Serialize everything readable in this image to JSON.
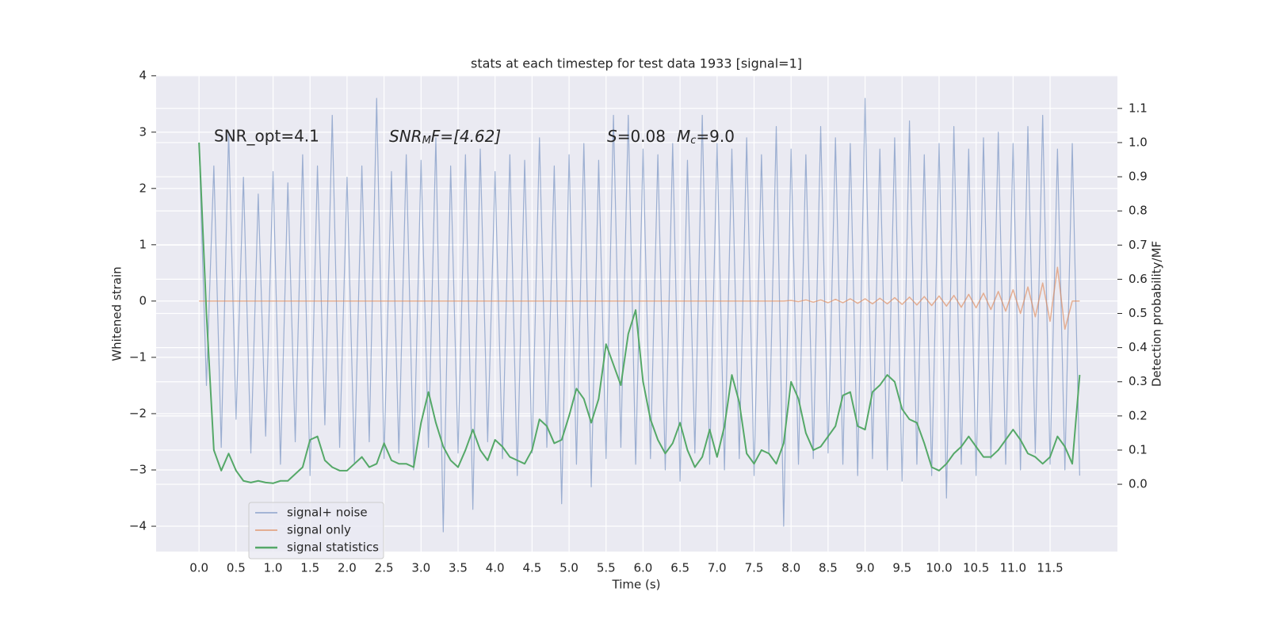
{
  "chart_data": {
    "type": "line",
    "title": "stats at each timestep for test data 1933 [signal=1]",
    "xlabel": "Time (s)",
    "ylabel": "Whitened strain",
    "y2label": "Detection probability/MF",
    "annotations": [
      [
        "SNR_opt=4.1"
      ],
      [
        "SNR",
        "M",
        "F=[4.62]"
      ],
      [
        "S",
        "=0.08",
        "M",
        "c",
        "=9.0"
      ]
    ],
    "grid": true,
    "xlim": [
      -0.58,
      12.41
    ],
    "ylim": [
      -4.45,
      4.01
    ],
    "y2lim": [
      -0.197,
      1.197
    ],
    "xticks": [
      {
        "value": 0,
        "label": "0.0"
      },
      0.5,
      {
        "value": 1,
        "label": "1.0"
      },
      1.5,
      {
        "value": 2,
        "label": "2.0"
      },
      2.5,
      {
        "value": 3,
        "label": "3.0"
      },
      3.5,
      {
        "value": 4,
        "label": "4.0"
      },
      4.5,
      {
        "value": 5,
        "label": "5.0"
      },
      5.5,
      {
        "value": 6,
        "label": "6.0"
      },
      6.5,
      {
        "value": 7,
        "label": "7.0"
      },
      7.5,
      {
        "value": 8,
        "label": "8.0"
      },
      8.5,
      {
        "value": 9,
        "label": "9.0"
      },
      9.5,
      {
        "value": 10,
        "label": "10.0"
      },
      10.5,
      {
        "value": 11,
        "label": "11.0"
      },
      11.5
    ],
    "yticks": [
      {
        "value": -4,
        "label": "−4"
      },
      {
        "value": -3,
        "label": "−3"
      },
      {
        "value": -2,
        "label": "−2"
      },
      {
        "value": -1,
        "label": "−1"
      },
      0,
      1,
      2,
      3,
      4
    ],
    "y2ticks": [
      {
        "value": 0,
        "label": "0.0"
      },
      0.1,
      0.2,
      0.3,
      0.4,
      0.5,
      0.6,
      0.7,
      0.8,
      0.9,
      {
        "value": 1,
        "label": "1.0"
      },
      1.1
    ],
    "x": [
      0.0,
      0.1,
      0.2,
      0.3,
      0.4,
      0.5,
      0.6,
      0.7,
      0.8,
      0.9,
      1.0,
      1.1,
      1.2,
      1.3,
      1.4,
      1.5,
      1.6,
      1.7,
      1.8,
      1.9,
      2.0,
      2.1,
      2.2,
      2.3,
      2.4,
      2.5,
      2.6,
      2.7,
      2.8,
      2.9,
      3.0,
      3.1,
      3.2,
      3.3,
      3.4,
      3.5,
      3.6,
      3.7,
      3.8,
      3.9,
      4.0,
      4.1,
      4.2,
      4.3,
      4.4,
      4.5,
      4.6,
      4.7,
      4.8,
      4.9,
      5.0,
      5.1,
      5.2,
      5.3,
      5.4,
      5.5,
      5.6,
      5.7,
      5.8,
      5.9,
      6.0,
      6.1,
      6.2,
      6.3,
      6.4,
      6.5,
      6.6,
      6.7,
      6.8,
      6.9,
      7.0,
      7.1,
      7.2,
      7.3,
      7.4,
      7.5,
      7.6,
      7.7,
      7.8,
      7.9,
      8.0,
      8.1,
      8.2,
      8.3,
      8.4,
      8.5,
      8.6,
      8.7,
      8.8,
      8.9,
      9.0,
      9.1,
      9.2,
      9.3,
      9.4,
      9.5,
      9.6,
      9.7,
      9.8,
      9.9,
      10.0,
      10.1,
      10.2,
      10.3,
      10.4,
      10.5,
      10.6,
      10.7,
      10.8,
      10.9,
      11.0,
      11.1,
      11.2,
      11.3,
      11.4,
      11.5,
      11.6,
      11.7,
      11.8,
      11.9
    ],
    "series": [
      {
        "name": "signal+ noise",
        "color": "#4c72b0",
        "values": [
          2.8,
          -1.5,
          2.4,
          -2.6,
          3.0,
          -2.1,
          2.2,
          -2.7,
          1.9,
          -2.4,
          2.3,
          -2.9,
          2.1,
          -2.5,
          2.6,
          -3.1,
          2.4,
          -2.2,
          3.3,
          -2.6,
          2.2,
          -2.9,
          2.4,
          -2.5,
          3.6,
          -2.8,
          2.3,
          -2.7,
          2.6,
          -3.0,
          2.5,
          -2.6,
          2.9,
          -4.1,
          2.4,
          -2.7,
          2.6,
          -3.7,
          2.7,
          -2.5,
          2.3,
          -2.8,
          2.6,
          -3.1,
          2.5,
          -2.7,
          2.9,
          -2.6,
          2.4,
          -3.6,
          2.6,
          -2.9,
          2.8,
          -3.3,
          2.5,
          -2.8,
          3.3,
          -2.6,
          3.3,
          -2.9,
          2.7,
          -2.8,
          2.6,
          -3.0,
          2.8,
          -3.2,
          2.5,
          -2.7,
          3.3,
          -2.9,
          2.8,
          -3.0,
          2.7,
          -2.8,
          2.9,
          -3.1,
          2.6,
          -2.7,
          3.1,
          -4.0,
          2.7,
          -2.9,
          2.6,
          -2.8,
          3.1,
          -2.7,
          2.9,
          -2.9,
          2.8,
          -3.1,
          3.6,
          -2.8,
          2.7,
          -3.0,
          2.9,
          -3.2,
          3.2,
          -2.9,
          2.6,
          -3.1,
          2.8,
          -3.5,
          3.1,
          -2.9,
          2.7,
          -3.1,
          2.9,
          -2.8,
          3.0,
          -2.9,
          2.8,
          -3.0,
          3.1,
          -2.7,
          3.3,
          -2.9,
          2.7,
          -3.0,
          2.8,
          -3.1
        ]
      },
      {
        "name": "signal only",
        "color": "#dd8452",
        "values": [
          0,
          0,
          0,
          0,
          0,
          0,
          0,
          0,
          0,
          0,
          0,
          0,
          0,
          0,
          0,
          0,
          0,
          0,
          0,
          0,
          0,
          0,
          0,
          0,
          0,
          0,
          0,
          0,
          0,
          0,
          0,
          0,
          0,
          0,
          0,
          0,
          0,
          0,
          0,
          0,
          0,
          0,
          0,
          0,
          0,
          0,
          0,
          0,
          0,
          0,
          0,
          0,
          0,
          0,
          0,
          0,
          0,
          0,
          0,
          0,
          0,
          0,
          0,
          0,
          0,
          0,
          0,
          0,
          0,
          0,
          0,
          0,
          0,
          0,
          0,
          0,
          0,
          0,
          0,
          0,
          0.01,
          -0.01,
          0.02,
          -0.02,
          0.02,
          -0.03,
          0.03,
          -0.03,
          0.04,
          -0.04,
          0.04,
          -0.05,
          0.05,
          -0.05,
          0.06,
          -0.06,
          0.07,
          -0.07,
          0.08,
          -0.08,
          0.09,
          -0.09,
          0.1,
          -0.11,
          0.12,
          -0.12,
          0.14,
          -0.15,
          0.17,
          -0.18,
          0.2,
          -0.22,
          0.25,
          -0.28,
          0.32,
          -0.36,
          0.6,
          -0.5,
          0,
          0
        ]
      },
      {
        "name": "signal statistics",
        "color": "#55a868",
        "axis": "y2",
        "values": [
          1.0,
          0.5,
          0.1,
          0.04,
          0.09,
          0.04,
          0.01,
          0.005,
          0.01,
          0.005,
          0.003,
          0.01,
          0.01,
          0.03,
          0.05,
          0.13,
          0.14,
          0.07,
          0.05,
          0.04,
          0.04,
          0.06,
          0.08,
          0.05,
          0.06,
          0.12,
          0.07,
          0.06,
          0.06,
          0.05,
          0.18,
          0.27,
          0.18,
          0.11,
          0.07,
          0.05,
          0.1,
          0.16,
          0.1,
          0.07,
          0.13,
          0.11,
          0.08,
          0.07,
          0.06,
          0.1,
          0.19,
          0.17,
          0.12,
          0.13,
          0.2,
          0.28,
          0.25,
          0.18,
          0.25,
          0.41,
          0.35,
          0.29,
          0.44,
          0.51,
          0.3,
          0.19,
          0.13,
          0.09,
          0.12,
          0.18,
          0.1,
          0.05,
          0.08,
          0.16,
          0.08,
          0.17,
          0.32,
          0.24,
          0.09,
          0.06,
          0.1,
          0.09,
          0.06,
          0.12,
          0.3,
          0.25,
          0.15,
          0.1,
          0.11,
          0.14,
          0.17,
          0.26,
          0.27,
          0.17,
          0.16,
          0.27,
          0.29,
          0.32,
          0.3,
          0.22,
          0.19,
          0.18,
          0.12,
          0.05,
          0.04,
          0.06,
          0.09,
          0.11,
          0.14,
          0.11,
          0.08,
          0.08,
          0.1,
          0.13,
          0.16,
          0.13,
          0.09,
          0.08,
          0.06,
          0.08,
          0.14,
          0.11,
          0.06,
          0.32
        ]
      }
    ]
  }
}
